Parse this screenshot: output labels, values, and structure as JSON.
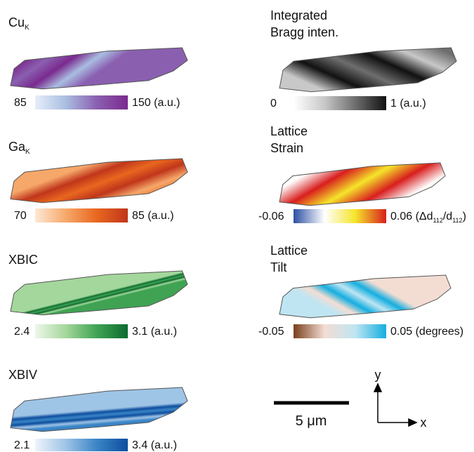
{
  "panels": [
    {
      "title": [
        [
          {
            "text": "Cu"
          },
          {
            "sub": "K"
          }
        ]
      ],
      "min": "85",
      "max": [
        {
          "text": "150 (a.u.)"
        }
      ],
      "colormap": [
        "#e6eefa",
        "#a9bde0",
        "#8a5fb0",
        "#7a2a8e"
      ]
    },
    {
      "title": [
        [
          {
            "text": "Ga"
          },
          {
            "sub": "K"
          }
        ]
      ],
      "min": "70",
      "max": [
        {
          "text": "85 (a.u.)"
        }
      ],
      "colormap": [
        "#fde8d4",
        "#f6a86a",
        "#e8671f",
        "#c0361b"
      ]
    },
    {
      "title": [
        [
          {
            "text": "XBIC"
          }
        ]
      ],
      "min": "2.4",
      "max": [
        {
          "text": "3.1 (a.u.)"
        }
      ],
      "colormap": [
        "#eef7ea",
        "#a3d79b",
        "#3fa353",
        "#0c6b2f"
      ]
    },
    {
      "title": [
        [
          {
            "text": "XBIV"
          }
        ]
      ],
      "min": "2.1",
      "max": [
        {
          "text": "3.4 (a.u.)"
        }
      ],
      "colormap": [
        "#eef4fb",
        "#9ec4e6",
        "#3a84c6",
        "#0d4e9e"
      ]
    },
    {
      "title": [
        [
          {
            "text": "Integrated"
          }
        ],
        [
          {
            "text": "Bragg inten."
          }
        ]
      ],
      "min": "0",
      "max": [
        {
          "text": "1 (a.u.)"
        }
      ],
      "colormap": [
        "#ffffff",
        "#c8c8c8",
        "#6e6e6e",
        "#111111"
      ]
    },
    {
      "title": [
        [
          {
            "text": "Lattice"
          }
        ],
        [
          {
            "text": "Strain"
          }
        ]
      ],
      "min": "-0.06",
      "max": [
        {
          "text": "0.06 (Δd"
        },
        {
          "sub": "112"
        },
        {
          "text": "/d"
        },
        {
          "sub": "112"
        },
        {
          "text": ")"
        }
      ],
      "colormap": [
        "#2c4fa3",
        "#ffffff",
        "#f5e52a",
        "#d81e1e"
      ]
    },
    {
      "title": [
        [
          {
            "text": "Lattice"
          }
        ],
        [
          {
            "text": "Tilt"
          }
        ]
      ],
      "min": "-0.05",
      "max": [
        {
          "text": "0.05 (degrees)"
        }
      ],
      "colormap": [
        "#7a3f1c",
        "#f3ddd3",
        "#bfe5f2",
        "#14aee0"
      ]
    }
  ],
  "scale_bar": "5 μm",
  "axes": {
    "y": "y",
    "x": "x"
  }
}
